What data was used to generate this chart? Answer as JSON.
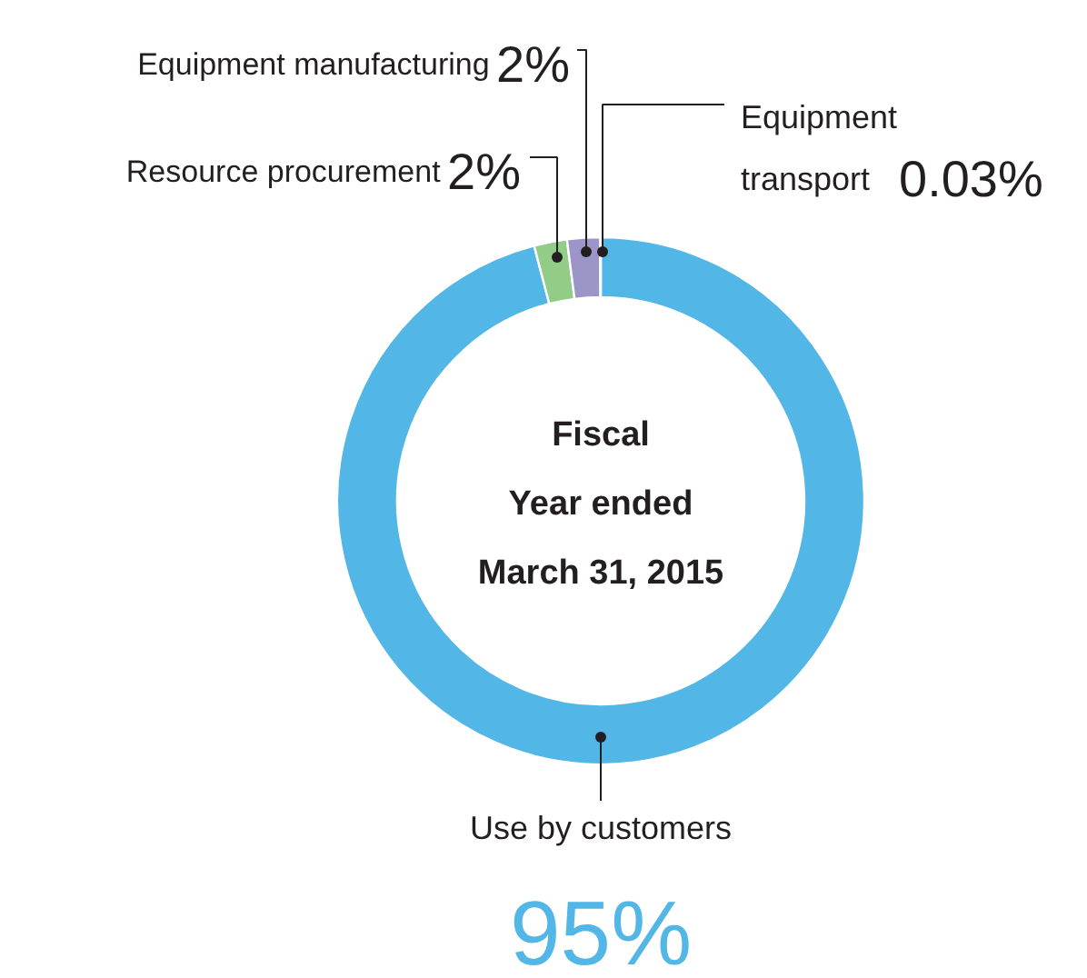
{
  "chart_data": {
    "type": "donut",
    "title": "Fiscal\nYear ended\nMarch 31, 2015",
    "categories": [
      "Use by customers",
      "Resource procurement",
      "Equipment manufacturing",
      "Equipment\ntransport"
    ],
    "values": [
      95,
      2,
      2,
      0.03
    ],
    "colors": [
      "#52b6e6",
      "#92cc86",
      "#9b95c8",
      "#5a6fb4"
    ],
    "value_labels": [
      "95%",
      "2%",
      "2%",
      "0.03%"
    ]
  }
}
